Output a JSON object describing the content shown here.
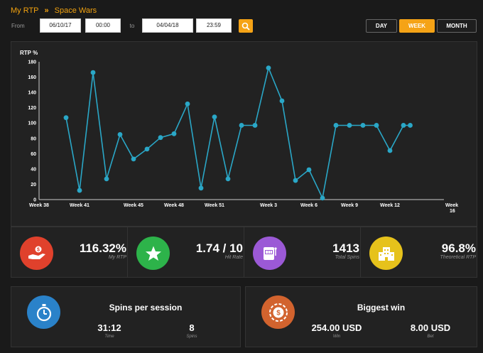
{
  "breadcrumb": {
    "home": "My RTP",
    "separator": "»",
    "current": "Space Wars"
  },
  "filters": {
    "from_label": "From",
    "from_date": "06/10/17",
    "from_time": "00:00",
    "to_label": "to",
    "to_date": "04/04/18",
    "to_time": "23:59"
  },
  "period": {
    "day": "DAY",
    "week": "WEEK",
    "month": "MONTH",
    "active": "WEEK"
  },
  "colors": {
    "accent": "#f5a316",
    "line": "#2aa7c7",
    "rtp": "#e0412c",
    "hit": "#2db34a",
    "spins": "#9b59d6",
    "theoretical": "#e6c21b",
    "session": "#2a82c9",
    "win": "#d2632e"
  },
  "chart_data": {
    "type": "line",
    "ylabel": "RTP %",
    "ylim": [
      0,
      180
    ],
    "yticks": [
      0,
      20,
      40,
      60,
      80,
      100,
      120,
      140,
      160,
      180
    ],
    "x_tick_labels": [
      "Week 38",
      "Week 41",
      "Week 45",
      "Week 48",
      "Week 51",
      "Week 3",
      "Week 6",
      "Week 9",
      "Week 12",
      "Week 16"
    ],
    "x_range": [
      38,
      68
    ],
    "x_ticks": [
      38,
      41,
      45,
      48,
      51,
      55,
      58,
      61,
      64,
      68
    ],
    "grid": false,
    "series": [
      {
        "x": [
          40,
          41,
          42,
          43,
          44,
          45,
          46,
          47,
          48,
          49,
          50,
          51,
          52,
          53,
          54,
          55,
          56,
          57,
          58,
          59,
          60,
          61,
          62,
          63,
          64,
          65,
          65.5
        ],
        "y": [
          107,
          12,
          166,
          27,
          85,
          53,
          66,
          81,
          86,
          125,
          15,
          108,
          27,
          97,
          97,
          172,
          129,
          25,
          39,
          2,
          97,
          97,
          97,
          97,
          64,
          97,
          97
        ]
      }
    ]
  },
  "stats": [
    {
      "value": "116.32%",
      "label": "My RTP",
      "icon": "hand-coin-icon"
    },
    {
      "value": "1.74 / 10",
      "label": "Hit Rate",
      "icon": "star-icon"
    },
    {
      "value": "1413",
      "label": "Total Spins",
      "icon": "slot-machine-icon"
    },
    {
      "value": "96.8%",
      "label": "Theoretical RTP",
      "icon": "casino-building-icon"
    }
  ],
  "session": {
    "title": "Spins per session",
    "time_value": "31:12",
    "time_label": "Time",
    "spins_value": "8",
    "spins_label": "Spins",
    "icon": "stopwatch-icon"
  },
  "biggest_win": {
    "title": "Biggest win",
    "win_value": "254.00 USD",
    "win_label": "Win",
    "bet_value": "8.00 USD",
    "bet_label": "Bet",
    "icon": "casino-chip-icon"
  }
}
